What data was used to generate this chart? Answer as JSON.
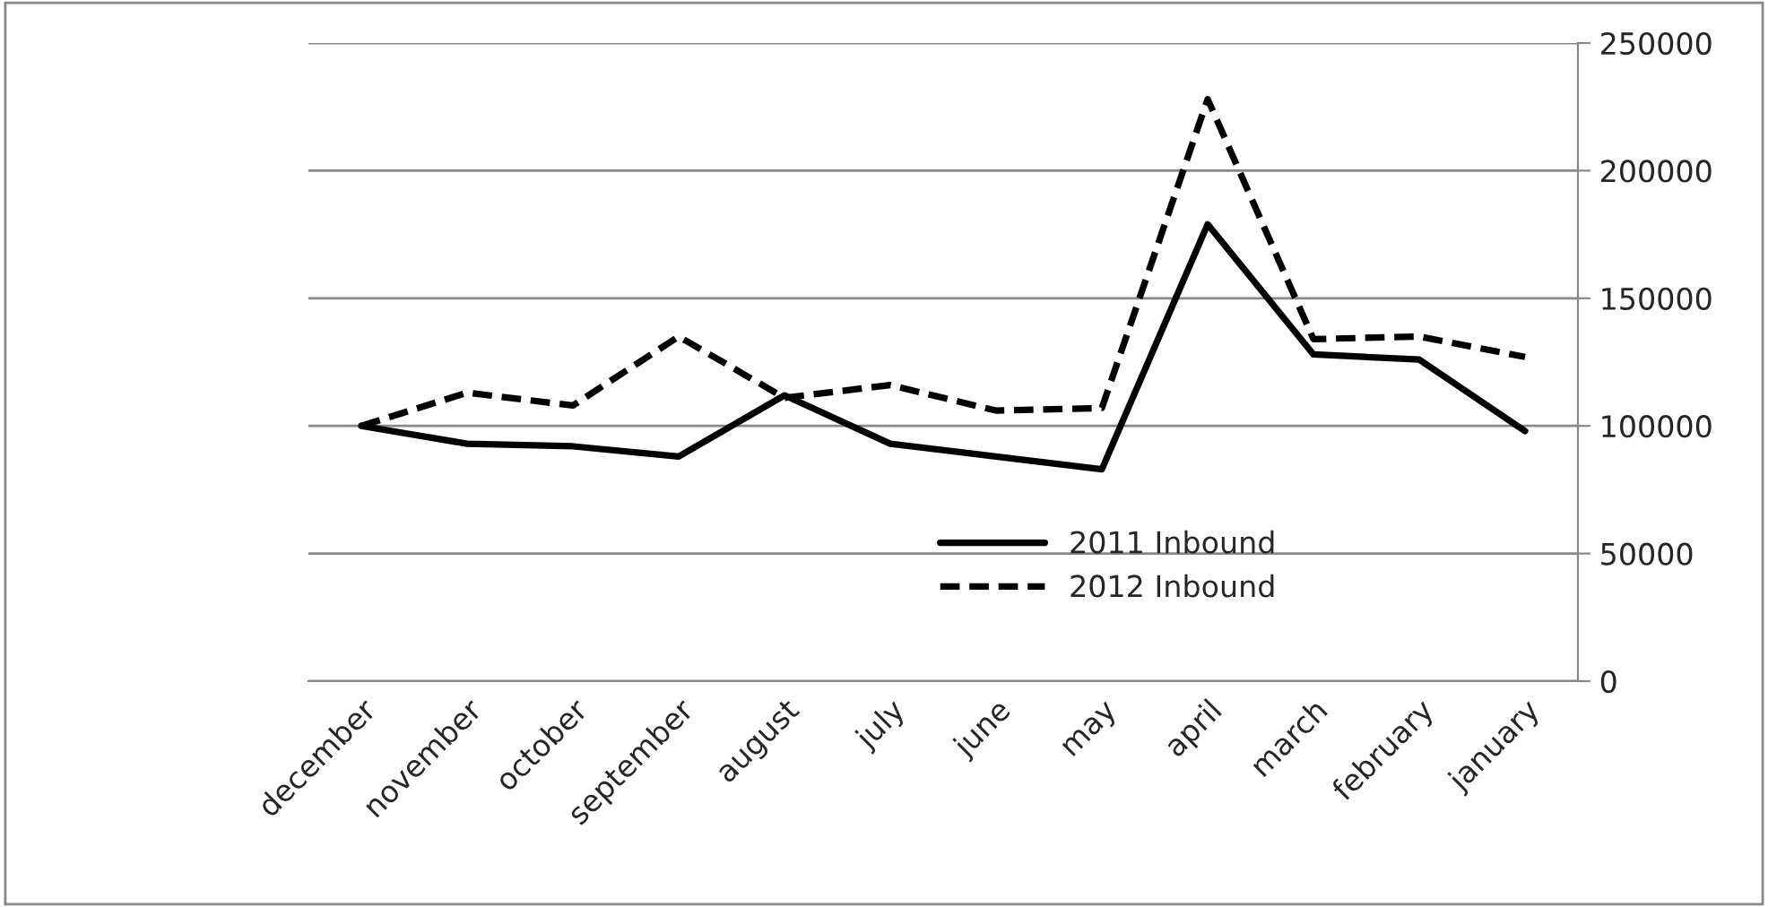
{
  "chart_data": {
    "type": "line",
    "categories": [
      "december",
      "november",
      "october",
      "september",
      "august",
      "july",
      "june",
      "may",
      "april",
      "march",
      "february",
      "january"
    ],
    "series": [
      {
        "name": "2011 Inbound",
        "color": "#000000",
        "line_style": "solid",
        "values": [
          100000,
          93000,
          92000,
          88000,
          112000,
          93000,
          88000,
          83000,
          179000,
          128000,
          126000,
          98000
        ]
      },
      {
        "name": "2012 Inbound",
        "color": "#000000",
        "line_style": "dashed",
        "values": [
          100000,
          113000,
          108000,
          135000,
          111000,
          116000,
          106000,
          107000,
          228000,
          134000,
          135000,
          127000
        ]
      }
    ],
    "ylim": [
      0,
      250000
    ],
    "yticks": [
      0,
      50000,
      100000,
      150000,
      200000,
      250000
    ],
    "grid": "y",
    "legend": "bottom",
    "marker": "none"
  }
}
